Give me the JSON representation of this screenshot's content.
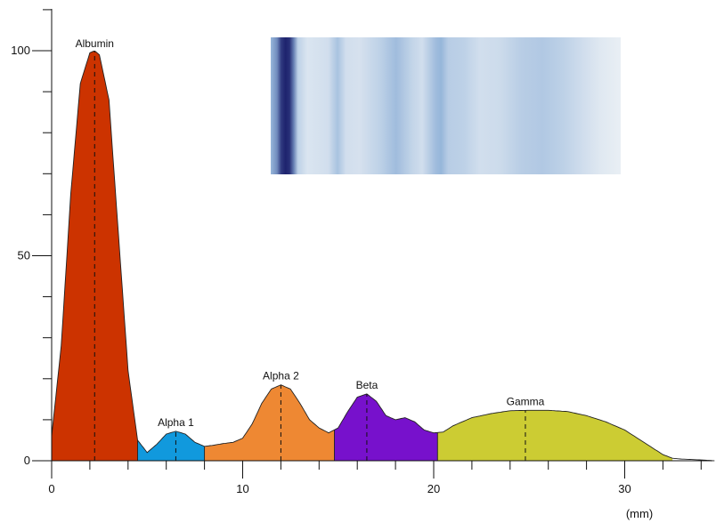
{
  "chart_data": {
    "type": "area",
    "title": "",
    "xlabel": "(mm)",
    "ylabel": "",
    "xlim": [
      0,
      35
    ],
    "ylim": [
      0,
      110
    ],
    "x_ticks": [
      0,
      10,
      20,
      30
    ],
    "y_ticks": [
      0,
      50,
      100
    ],
    "grid": false,
    "legend": "none",
    "profile": {
      "x": [
        0,
        0.5,
        1.0,
        1.5,
        2.0,
        2.25,
        2.5,
        3.0,
        3.5,
        4.0,
        4.5,
        5.0,
        5.5,
        6.0,
        6.5,
        7.0,
        7.5,
        8.0,
        8.5,
        9.0,
        9.5,
        10.0,
        10.5,
        11.0,
        11.5,
        12.0,
        12.5,
        13.0,
        13.5,
        14.0,
        14.5,
        15.0,
        15.5,
        16.0,
        16.5,
        17.0,
        17.5,
        18.0,
        18.5,
        19.0,
        19.5,
        20.0,
        20.5,
        21,
        22,
        23,
        24,
        25,
        26,
        27,
        28,
        29,
        30,
        31,
        32,
        32.5,
        33,
        34.0,
        34.7
      ],
      "y": [
        6,
        28,
        65,
        92,
        99.5,
        100,
        99,
        88,
        55,
        22,
        5,
        2,
        4,
        6.5,
        7.2,
        6.5,
        4.5,
        3.5,
        3.8,
        4.2,
        4.5,
        5.5,
        9,
        14,
        17.5,
        18.5,
        17.5,
        14,
        10,
        8,
        6.8,
        8,
        12,
        15.5,
        16.3,
        14.5,
        11,
        10,
        10.5,
        9.5,
        7.5,
        6.8,
        7,
        8.5,
        10.5,
        11.5,
        12.2,
        12.3,
        12.3,
        12,
        11,
        9.5,
        7.5,
        4.5,
        1.5,
        0.6,
        0.4,
        0.2,
        0
      ]
    },
    "fractions": [
      {
        "name": "Albumin",
        "x_start": 0,
        "x_end": 4.5,
        "peak_x": 2.25,
        "peak_y": 100,
        "color": "#cc3300"
      },
      {
        "name": "Alpha 1",
        "x_start": 4.5,
        "x_end": 8.0,
        "peak_x": 6.5,
        "peak_y": 7.2,
        "color": "#1199dd"
      },
      {
        "name": "Alpha 2",
        "x_start": 8.0,
        "x_end": 14.8,
        "peak_x": 12.0,
        "peak_y": 18.5,
        "color": "#ee8833"
      },
      {
        "name": "Beta",
        "x_start": 14.8,
        "x_end": 20.2,
        "peak_x": 16.5,
        "peak_y": 16.3,
        "color": "#7711cc"
      },
      {
        "name": "Gamma",
        "x_start": 20.2,
        "x_end": 32.5,
        "peak_x": 24.8,
        "peak_y": 12.3,
        "color": "#cccc33"
      }
    ],
    "gel_strip": {
      "x_range": [
        10.5,
        30.0
      ],
      "intensity": [
        [
          0.0,
          0.35
        ],
        [
          0.6,
          0.55
        ],
        [
          1.0,
          0.9
        ],
        [
          1.4,
          1.0
        ],
        [
          1.8,
          0.95
        ],
        [
          2.2,
          0.6
        ],
        [
          2.6,
          0.2
        ],
        [
          3.5,
          0.08
        ],
        [
          5.5,
          0.12
        ],
        [
          6.4,
          0.28
        ],
        [
          7.2,
          0.12
        ],
        [
          8.5,
          0.1
        ],
        [
          10.5,
          0.2
        ],
        [
          12.0,
          0.32
        ],
        [
          13.5,
          0.18
        ],
        [
          14.5,
          0.12
        ],
        [
          15.8,
          0.32
        ],
        [
          16.3,
          0.36
        ],
        [
          17.0,
          0.22
        ],
        [
          18.5,
          0.2
        ],
        [
          20.0,
          0.12
        ],
        [
          22,
          0.14
        ],
        [
          24,
          0.22
        ],
        [
          26,
          0.25
        ],
        [
          28,
          0.2
        ],
        [
          30,
          0.12
        ],
        [
          31.5,
          0.06
        ],
        [
          33.5,
          0.02
        ]
      ]
    }
  }
}
